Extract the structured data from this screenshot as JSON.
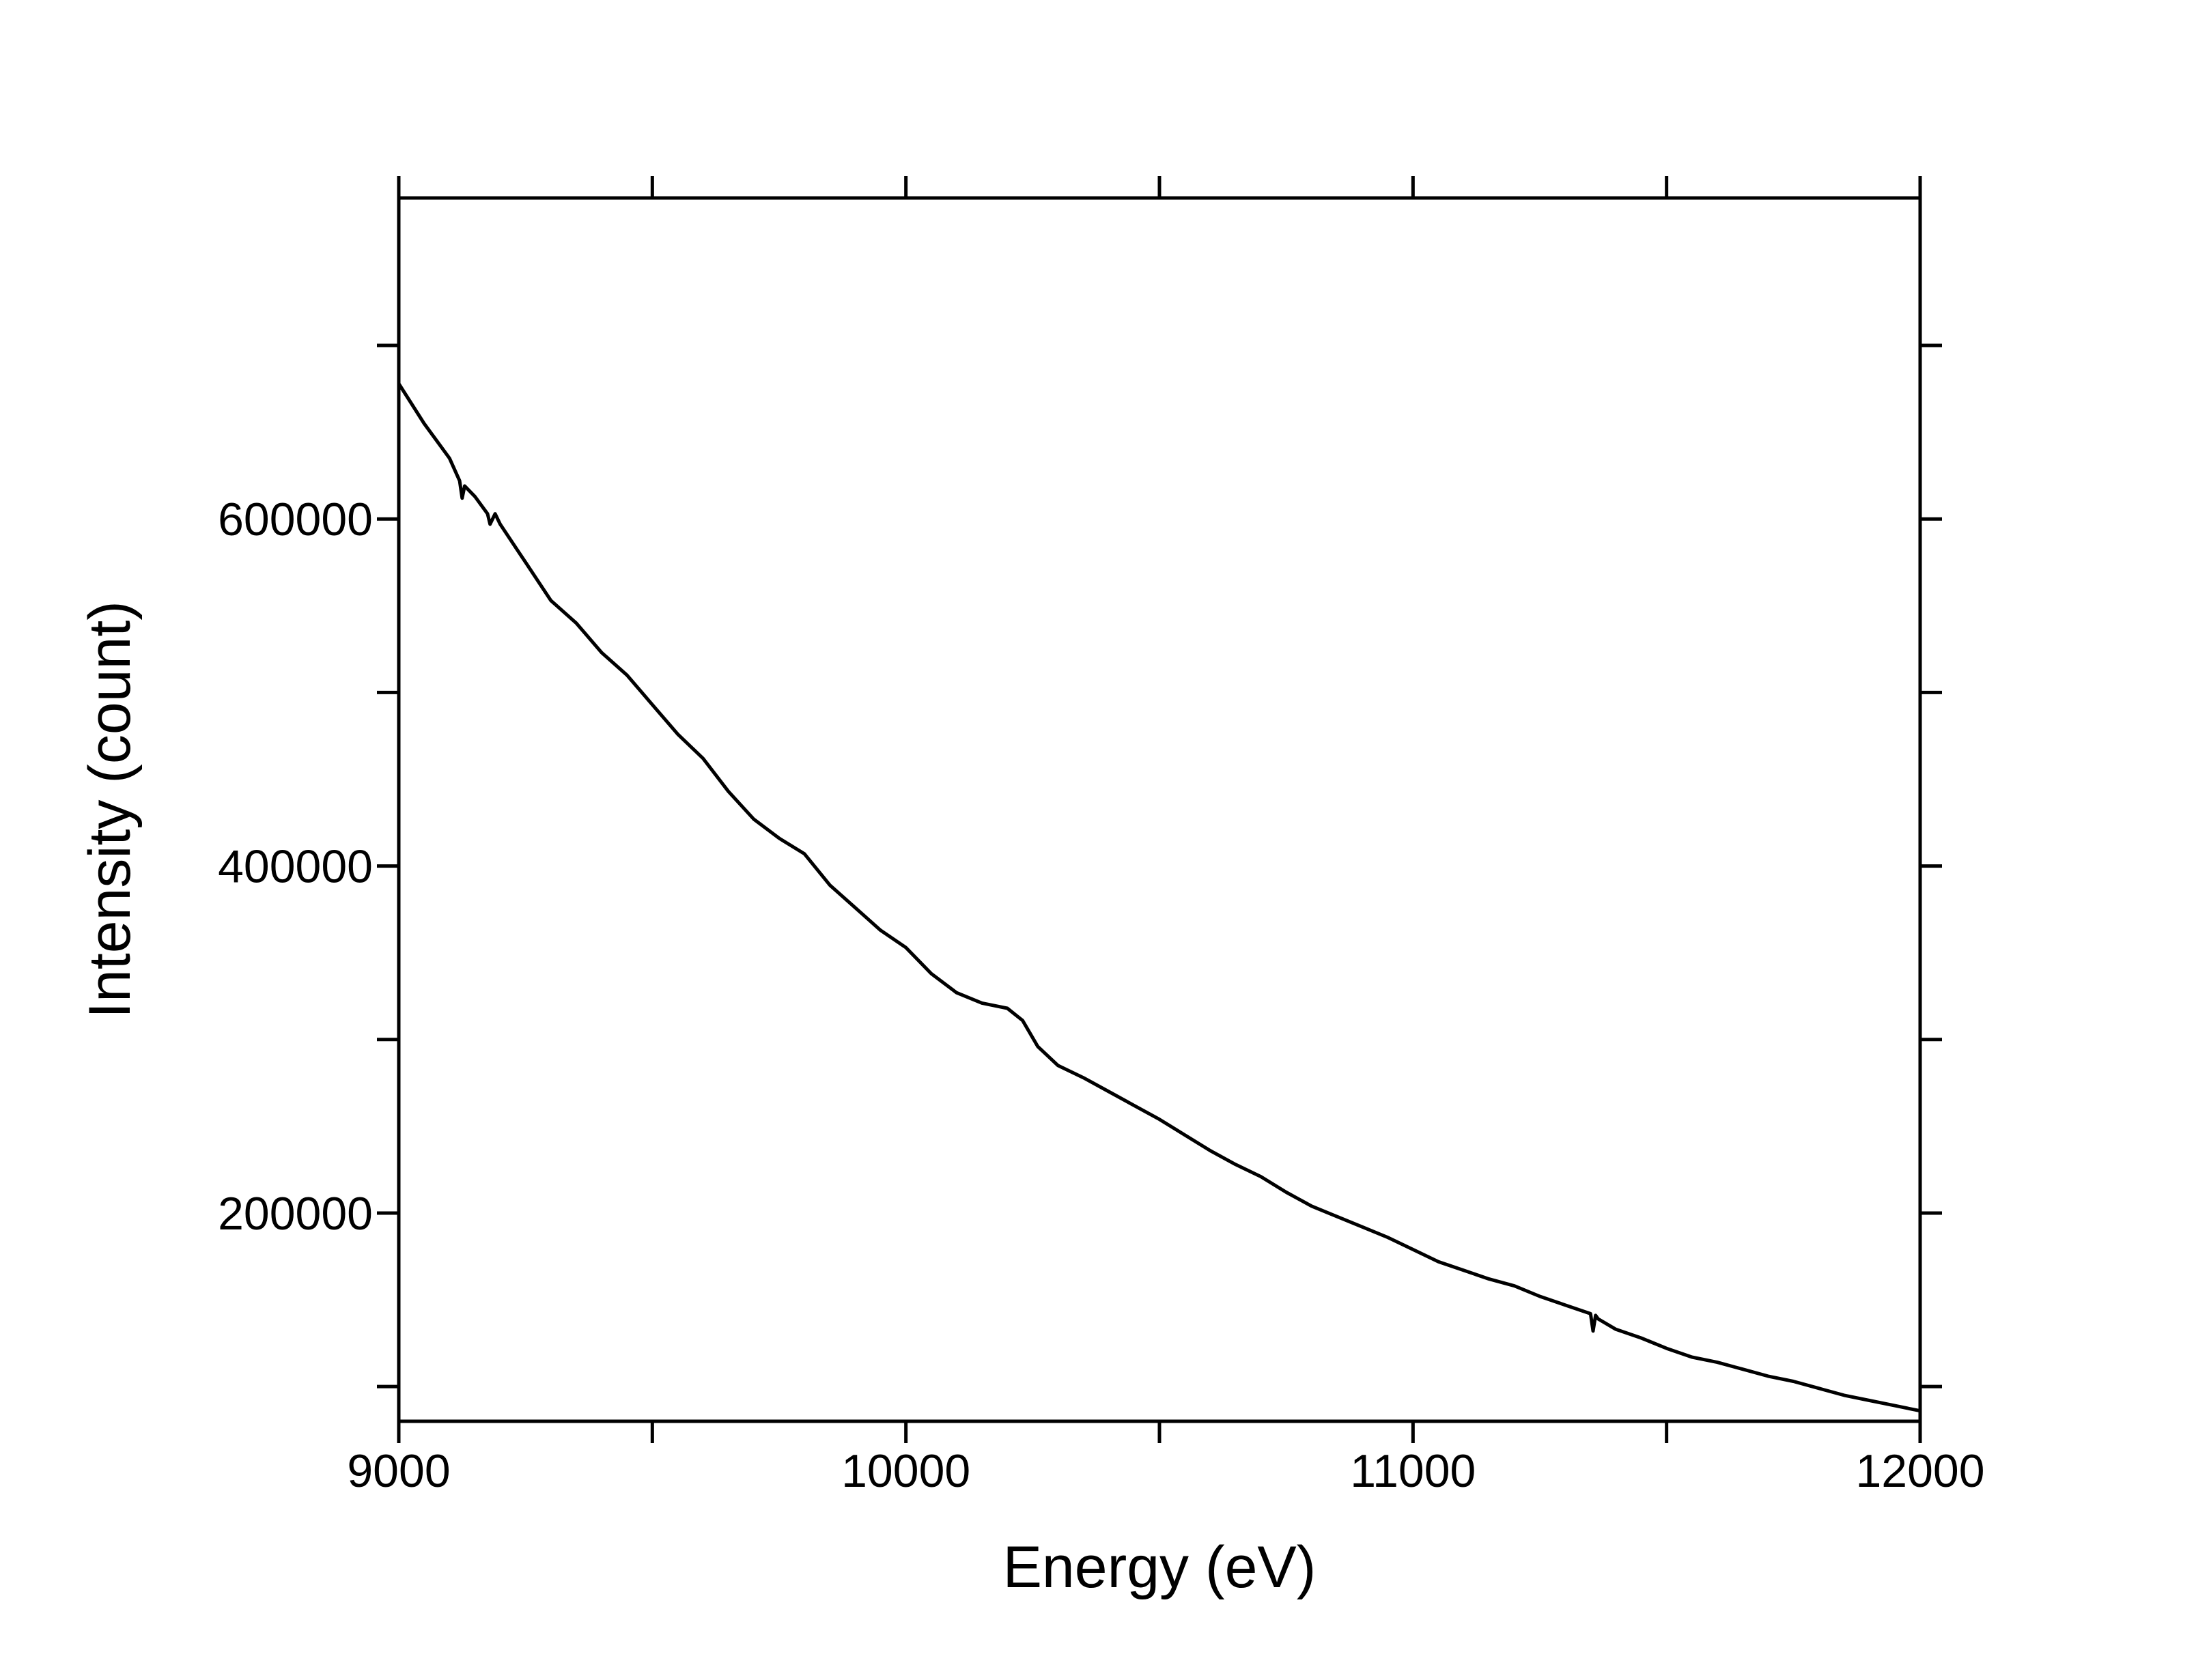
{
  "chart_data": {
    "type": "line",
    "title": "",
    "xlabel": "Energy (eV)",
    "ylabel": "Intensity (count)",
    "xlim": [
      9000,
      12000
    ],
    "ylim": [
      80000,
      785000
    ],
    "x_ticks": [
      9000,
      10000,
      11000,
      12000
    ],
    "x_tick_labels": [
      "9000",
      "10000",
      "11000",
      "12000"
    ],
    "x_minor_ticks": [
      9500,
      10500,
      11500
    ],
    "y_ticks": [
      200000,
      400000,
      600000
    ],
    "y_tick_labels": [
      "200000",
      "400000",
      "600000"
    ],
    "y_minor_ticks": [
      100000,
      300000,
      500000,
      700000
    ],
    "grid": false,
    "legend": "none",
    "line_color": "#000000",
    "series": [
      {
        "x": [
          9000,
          9050,
          9100,
          9120,
          9125,
          9130,
          9150,
          9175,
          9180,
          9190,
          9200,
          9250,
          9300,
          9350,
          9400,
          9450,
          9500,
          9550,
          9600,
          9650,
          9700,
          9750,
          9800,
          9850,
          9900,
          9950,
          10000,
          10050,
          10100,
          10150,
          10200,
          10230,
          10260,
          10300,
          10350,
          10400,
          10450,
          10500,
          10550,
          10600,
          10650,
          10700,
          10750,
          10800,
          10850,
          10900,
          10950,
          11000,
          11050,
          11100,
          11150,
          11200,
          11250,
          11300,
          11350,
          11355,
          11360,
          11365,
          11400,
          11450,
          11500,
          11550,
          11600,
          11650,
          11700,
          11750,
          11800,
          11850,
          11900,
          11950,
          12000
        ],
        "y": [
          678000,
          655000,
          635000,
          622000,
          612000,
          619000,
          613000,
          603000,
          597000,
          603000,
          597000,
          575000,
          553000,
          540000,
          523000,
          510000,
          493000,
          476000,
          462000,
          443000,
          427000,
          416000,
          407000,
          389000,
          376000,
          363000,
          353000,
          338000,
          327000,
          321000,
          318000,
          311000,
          296000,
          285000,
          278000,
          270000,
          262000,
          254000,
          245000,
          236000,
          228000,
          221000,
          212000,
          204000,
          198000,
          192000,
          186000,
          179000,
          172000,
          167000,
          162000,
          158000,
          152000,
          147000,
          142000,
          132000,
          141000,
          139000,
          133000,
          128000,
          122000,
          117000,
          114000,
          110000,
          106000,
          103000,
          99000,
          95000,
          92000,
          89000,
          86000
        ]
      }
    ]
  }
}
